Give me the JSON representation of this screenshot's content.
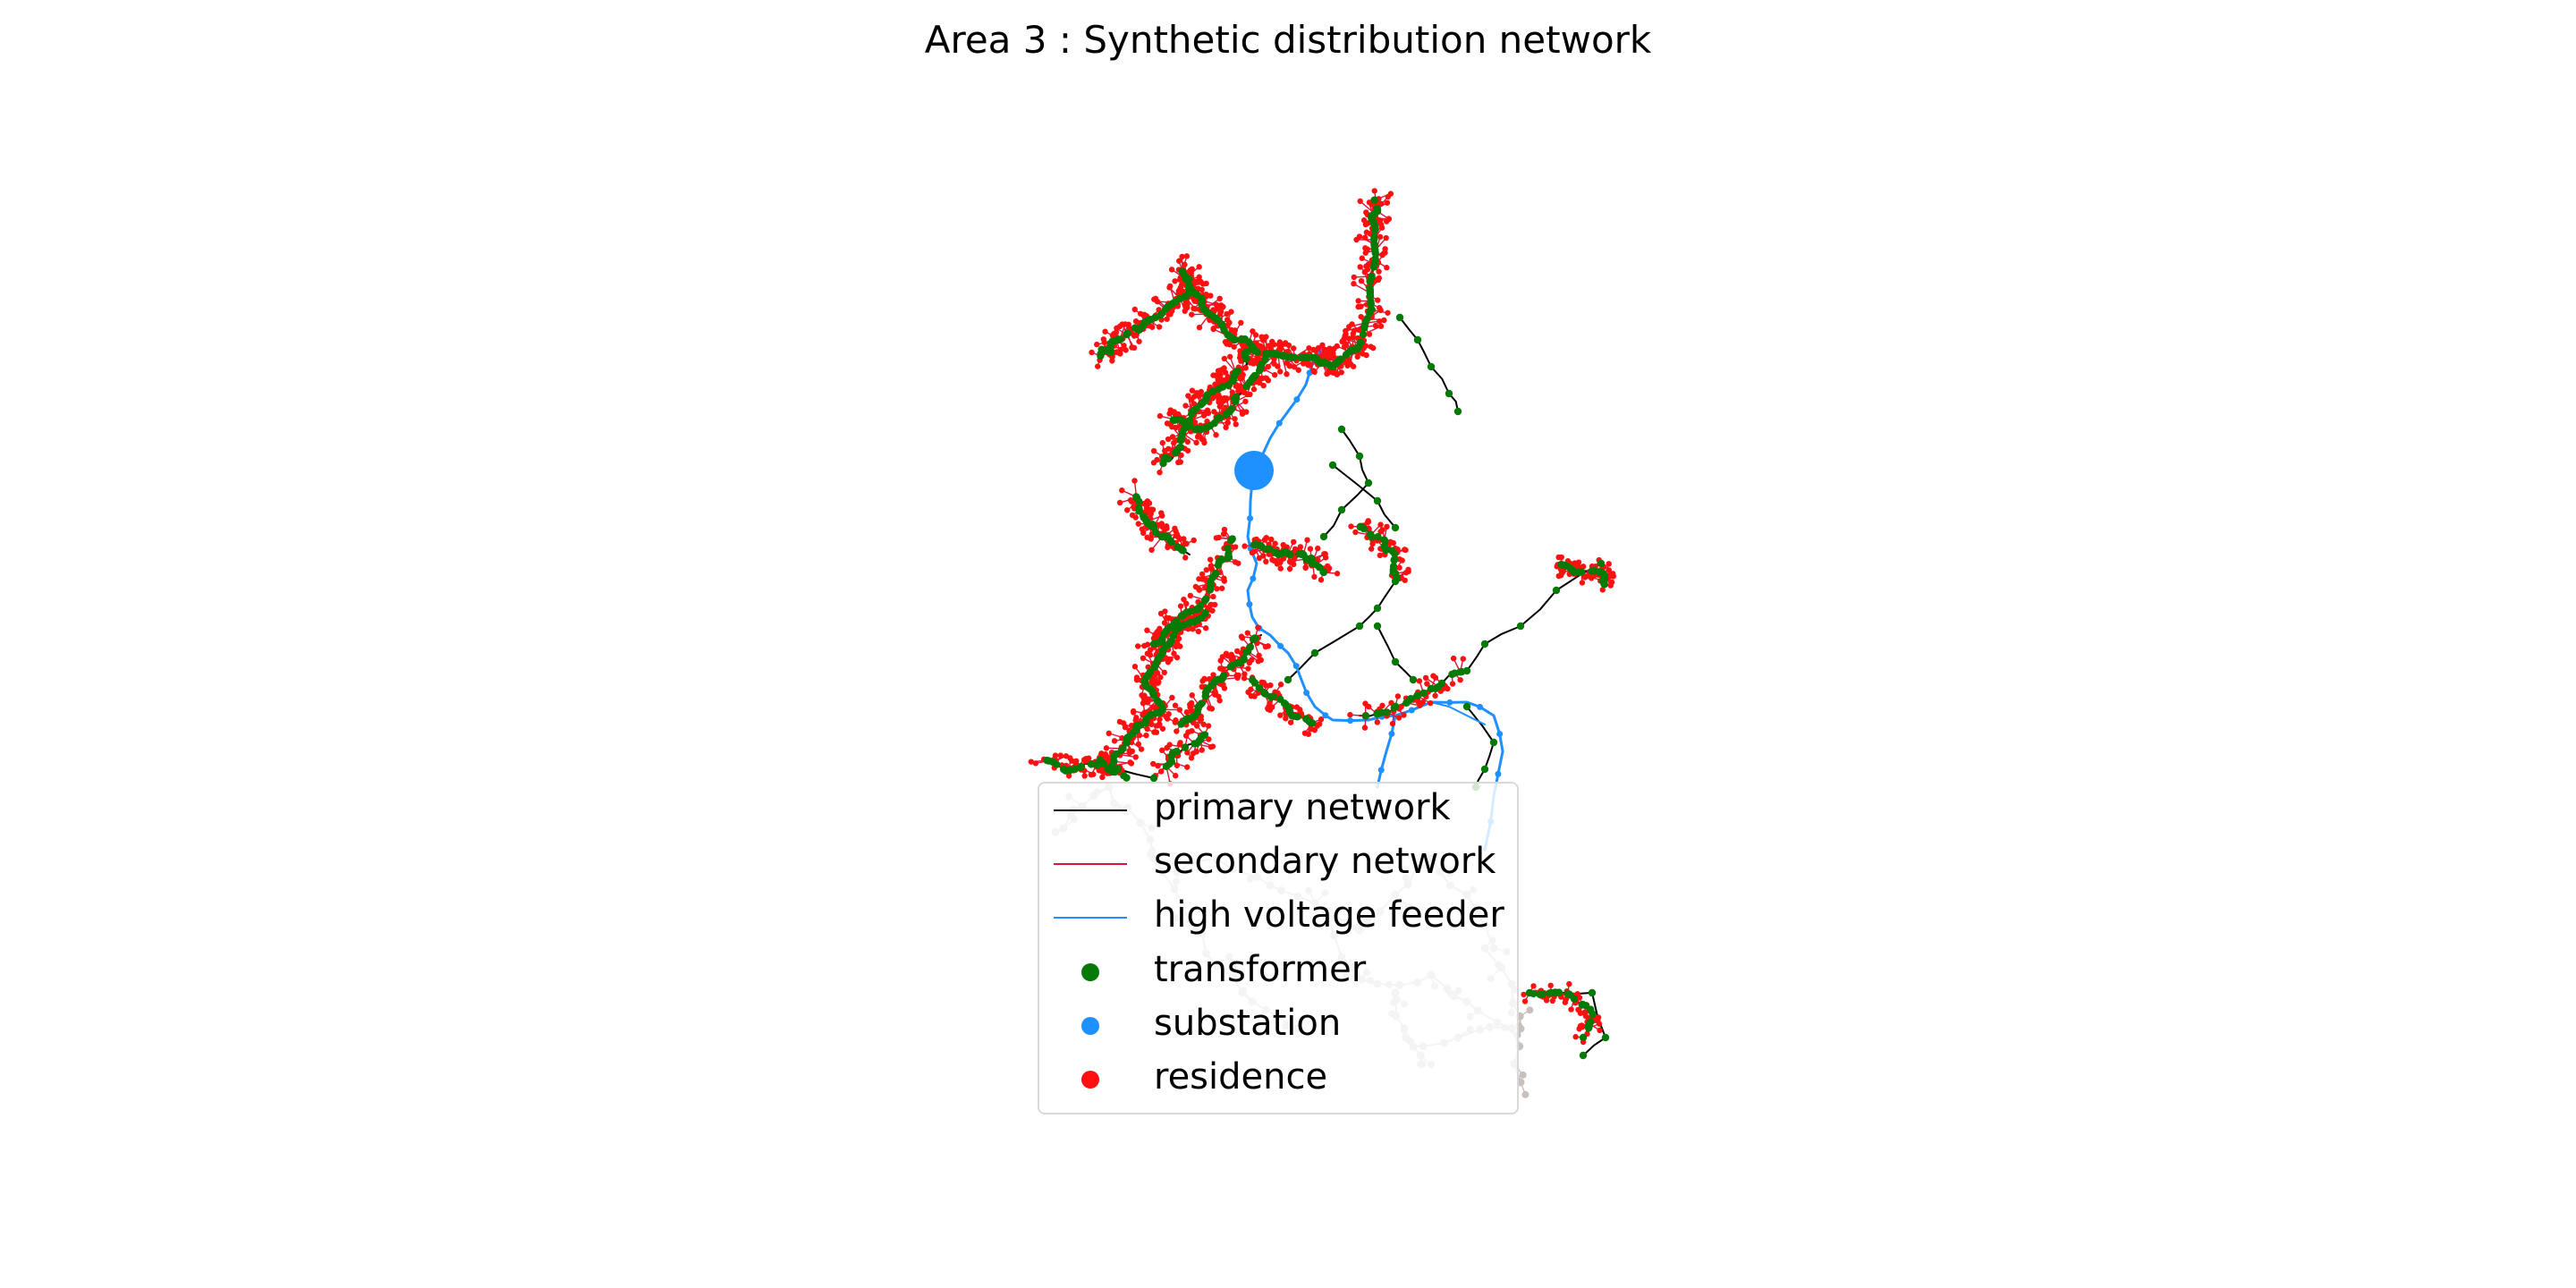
{
  "title": "Area 3 : Synthetic distribution network",
  "colors": {
    "primary": "#000000",
    "secondary": "#dc143c",
    "high_voltage": "#1e90ff",
    "transformer": "#067a06",
    "substation": "#1e90ff",
    "residence": "#ff1010",
    "other_area": "#c8c0bc"
  },
  "legend": {
    "items": [
      {
        "label": "primary network",
        "kind": "line",
        "color": "#000000"
      },
      {
        "label": "secondary network",
        "kind": "line",
        "color": "#dc143c"
      },
      {
        "label": "high voltage feeder",
        "kind": "line",
        "color": "#1e90ff"
      },
      {
        "label": "transformer",
        "kind": "dot",
        "color": "#067a06"
      },
      {
        "label": "substation",
        "kind": "dot",
        "color": "#1e90ff"
      },
      {
        "label": "residence",
        "kind": "dot",
        "color": "#ff1010"
      }
    ]
  }
}
